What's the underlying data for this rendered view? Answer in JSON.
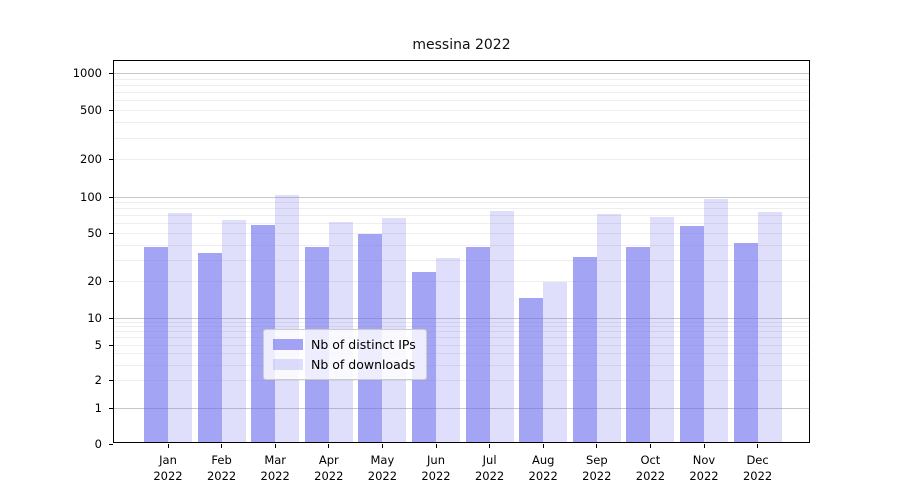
{
  "title": "messina 2022",
  "chart_data": {
    "type": "bar",
    "title": "messina 2022",
    "months": [
      "Jan",
      "Feb",
      "Mar",
      "Apr",
      "May",
      "Jun",
      "Jul",
      "Aug",
      "Sep",
      "Oct",
      "Nov",
      "Dec"
    ],
    "year": "2022",
    "series": [
      {
        "name": "Nb of distinct IPs",
        "values": [
          37,
          33,
          56,
          37,
          48,
          23,
          37,
          14,
          31,
          37,
          55,
          40
        ]
      },
      {
        "name": "Nb of downloads",
        "values": [
          71,
          62,
          100,
          60,
          64,
          30,
          74,
          19,
          70,
          66,
          92,
          73
        ]
      }
    ],
    "yscale": "symlog",
    "y_ticks": [
      0,
      1,
      2,
      5,
      10,
      20,
      50,
      100,
      200,
      500,
      1000
    ],
    "ylim": [
      0,
      1000
    ],
    "xlabel": "",
    "ylabel": "",
    "grid": "on",
    "legend_position": "lower center"
  },
  "colors": {
    "bar_base": "#6c6cee",
    "bar_alpha_distinct_ips": 0.62,
    "bar_alpha_downloads": 0.22,
    "grid_major": "#c8c8c8",
    "grid_minor": "#eeeeee",
    "axis": "#000000"
  }
}
